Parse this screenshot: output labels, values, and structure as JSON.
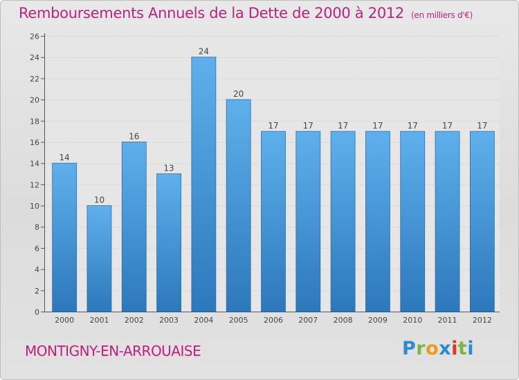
{
  "title": "Remboursements Annuels de la Dette de 2000 à 2012",
  "unit_note": "(en milliers d'€)",
  "commune": "MONTIGNY-EN-ARROUAISE",
  "brand": "Proxiti",
  "colors": {
    "bar": "#4f9fde",
    "bar_light": "#5eb0ec",
    "bar_dark": "#2d78bb",
    "title": "#c0207a",
    "axis": "#555555",
    "grid": "#cfcfcf",
    "logo": [
      "#2a8ad4",
      "#7ab83b",
      "#f09a1c",
      "#2a8ad4",
      "#e8321e",
      "#7ab83b",
      "#2a8ad4"
    ]
  },
  "chart_data": {
    "type": "bar",
    "title": "Remboursements Annuels de la Dette de 2000 à 2012",
    "xlabel": "",
    "ylabel": "",
    "categories": [
      "2000",
      "2001",
      "2002",
      "2003",
      "2004",
      "2005",
      "2006",
      "2007",
      "2008",
      "2009",
      "2010",
      "2011",
      "2012"
    ],
    "values": [
      14,
      10,
      16,
      13,
      24,
      20,
      17,
      17,
      17,
      17,
      17,
      17,
      17
    ],
    "data_labels": [
      "14",
      "10",
      "16",
      "13",
      "24",
      "20",
      "17",
      "17",
      "17",
      "17",
      "17",
      "17",
      "17"
    ],
    "ylim": [
      0,
      26
    ],
    "yticks": [
      0,
      2,
      4,
      6,
      8,
      10,
      12,
      14,
      16,
      18,
      20,
      22,
      24,
      26
    ],
    "grid": true
  }
}
